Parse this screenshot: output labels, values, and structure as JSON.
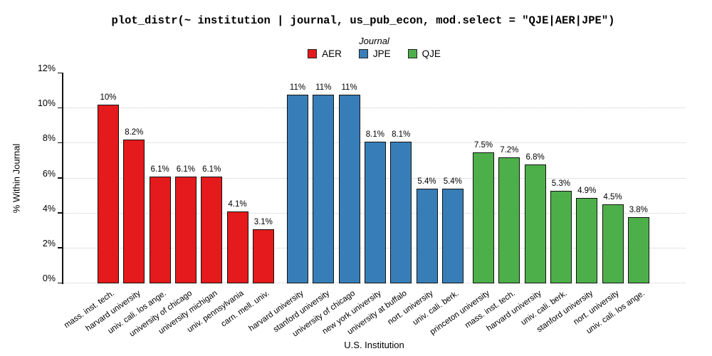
{
  "title": "plot_distr(~ institution | journal, us_pub_econ, mod.select = \"QJE|AER|JPE\")",
  "legend": {
    "title": "Journal"
  },
  "axes": {
    "y_label": "% Within Journal",
    "x_label": "U.S. Institution",
    "y_ticks": [
      {
        "label": "0%",
        "value": 0
      },
      {
        "label": "2%",
        "value": 2
      },
      {
        "label": "4%",
        "value": 4
      },
      {
        "label": "6%",
        "value": 6
      },
      {
        "label": "8%",
        "value": 8
      },
      {
        "label": "10%",
        "value": 10
      },
      {
        "label": "12%",
        "value": 12
      }
    ]
  },
  "colors": {
    "aer": "#E41A1C",
    "jpe": "#377EB8",
    "qje": "#4DAF4A",
    "bar_border": "#111111",
    "grid": "#c9c9c9",
    "axis": "#111111",
    "background": "#ffffff"
  },
  "chart_data": {
    "type": "bar",
    "title": "plot_distr(~ institution | journal, us_pub_econ, mod.select = \"QJE|AER|JPE\")",
    "xlabel": "U.S. Institution",
    "ylabel": "% Within Journal",
    "ylim": [
      0,
      12
    ],
    "grid": "horizontal-dotted",
    "grid_values": [
      0,
      2,
      4,
      6,
      8,
      10
    ],
    "legend_title": "Journal",
    "legend_position": "top-center",
    "series": [
      {
        "name": "AER",
        "color": "#E41A1C",
        "categories": [
          "mass. inst. tech.",
          "harvard university",
          "univ. cali. los ange.",
          "university of chicago",
          "university michigan",
          "univ. pennsylvania",
          "carn. mell. univ."
        ],
        "values": [
          10.2,
          8.2,
          6.1,
          6.1,
          6.1,
          4.1,
          3.1
        ],
        "labels": [
          "10%",
          "8.2%",
          "6.1%",
          "6.1%",
          "6.1%",
          "4.1%",
          "3.1%"
        ]
      },
      {
        "name": "JPE",
        "color": "#377EB8",
        "categories": [
          "harvard university",
          "stanford university",
          "university of chicago",
          "new york university",
          "university at buffalo",
          "nort. university",
          "univ. cali. berk."
        ],
        "values": [
          10.8,
          10.8,
          10.8,
          8.1,
          8.1,
          5.4,
          5.4
        ],
        "labels": [
          "11%",
          "11%",
          "11%",
          "8.1%",
          "8.1%",
          "5.4%",
          "5.4%"
        ]
      },
      {
        "name": "QJE",
        "color": "#4DAF4A",
        "categories": [
          "princeton university",
          "mass. inst. tech.",
          "harvard university",
          "univ. cali. berk.",
          "stanford university",
          "nort. university",
          "univ. cali. los ange."
        ],
        "values": [
          7.5,
          7.2,
          6.8,
          5.3,
          4.9,
          4.5,
          3.8
        ],
        "labels": [
          "7.5%",
          "7.2%",
          "6.8%",
          "5.3%",
          "4.9%",
          "4.5%",
          "3.8%"
        ]
      }
    ]
  }
}
